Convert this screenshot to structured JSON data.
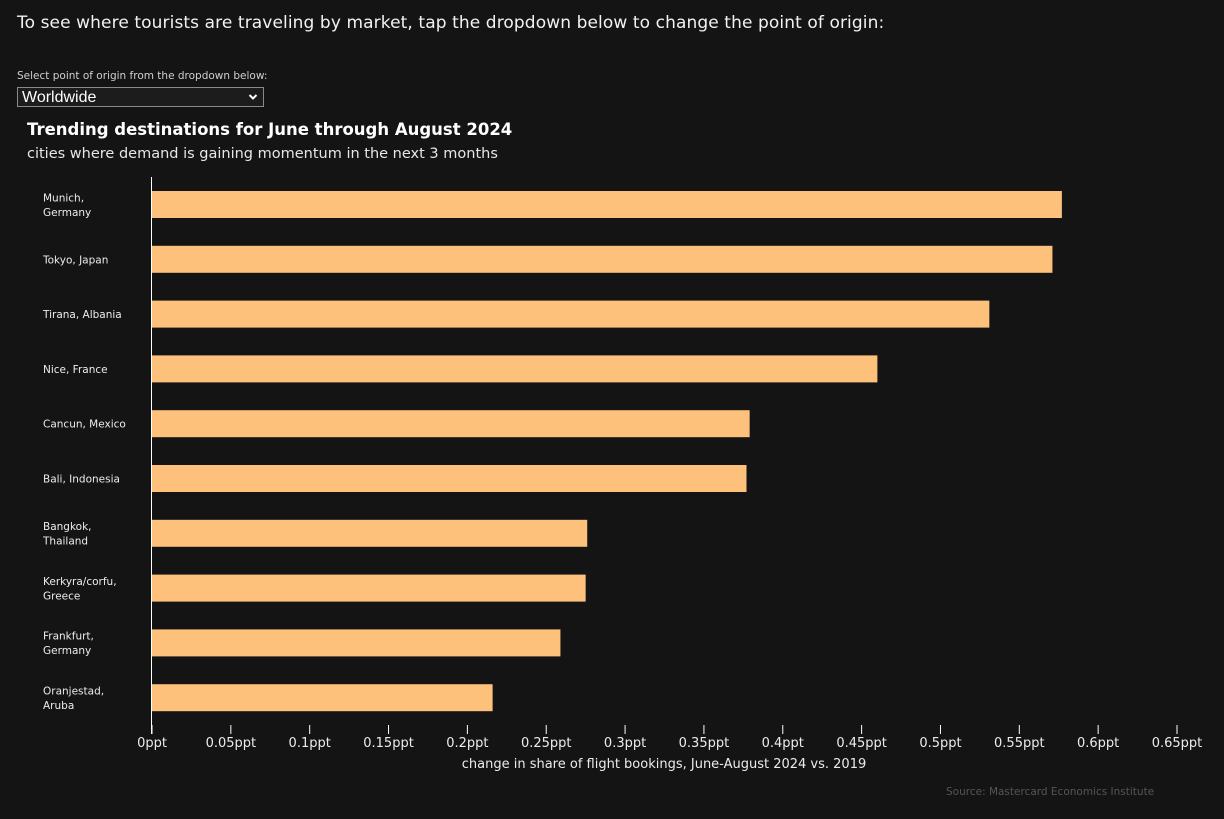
{
  "header": {
    "intro": "To see where tourists are traveling by market, tap the dropdown below to change the point of origin:"
  },
  "origin_select": {
    "label": "Select point of origin from the dropdown below:",
    "value": "Worldwide",
    "icon": "chevron-down-icon"
  },
  "source": "Source: Mastercard Economics Institute",
  "colors": {
    "background": "#141414",
    "bar": "#FDC17C",
    "axis": "#ffffff"
  },
  "chart_data": {
    "type": "bar",
    "orientation": "horizontal",
    "title": "Trending destinations for June through August 2024",
    "subtitle": "cities where demand is gaining momentum in the next 3 months",
    "xlabel": "change in share of flight bookings, June-August 2024 vs. 2019",
    "ylabel": "",
    "categories": [
      [
        "Munich,",
        "Germany"
      ],
      [
        "Tokyo, Japan"
      ],
      [
        "Tirana, Albania"
      ],
      [
        "Nice, France"
      ],
      [
        "Cancun, Mexico"
      ],
      [
        "Bali, Indonesia"
      ],
      [
        "Bangkok,",
        "Thailand"
      ],
      [
        "Kerkyra/corfu,",
        "Greece"
      ],
      [
        "Frankfurt,",
        "Germany"
      ],
      [
        "Oranjestad,",
        "Aruba"
      ]
    ],
    "values": [
      0.577,
      0.571,
      0.531,
      0.46,
      0.379,
      0.377,
      0.276,
      0.275,
      0.259,
      0.216
    ],
    "xlim": [
      0,
      0.65
    ],
    "xticks": [
      0,
      0.05,
      0.1,
      0.15,
      0.2,
      0.25,
      0.3,
      0.35,
      0.4,
      0.45,
      0.5,
      0.55,
      0.6,
      0.65
    ],
    "xtick_labels": [
      "0ppt",
      "0.05ppt",
      "0.1ppt",
      "0.15ppt",
      "0.2ppt",
      "0.25ppt",
      "0.3ppt",
      "0.35ppt",
      "0.4ppt",
      "0.45ppt",
      "0.5ppt",
      "0.55ppt",
      "0.6ppt",
      "0.65ppt"
    ],
    "unit": "ppt",
    "grid": false,
    "legend": "none"
  }
}
